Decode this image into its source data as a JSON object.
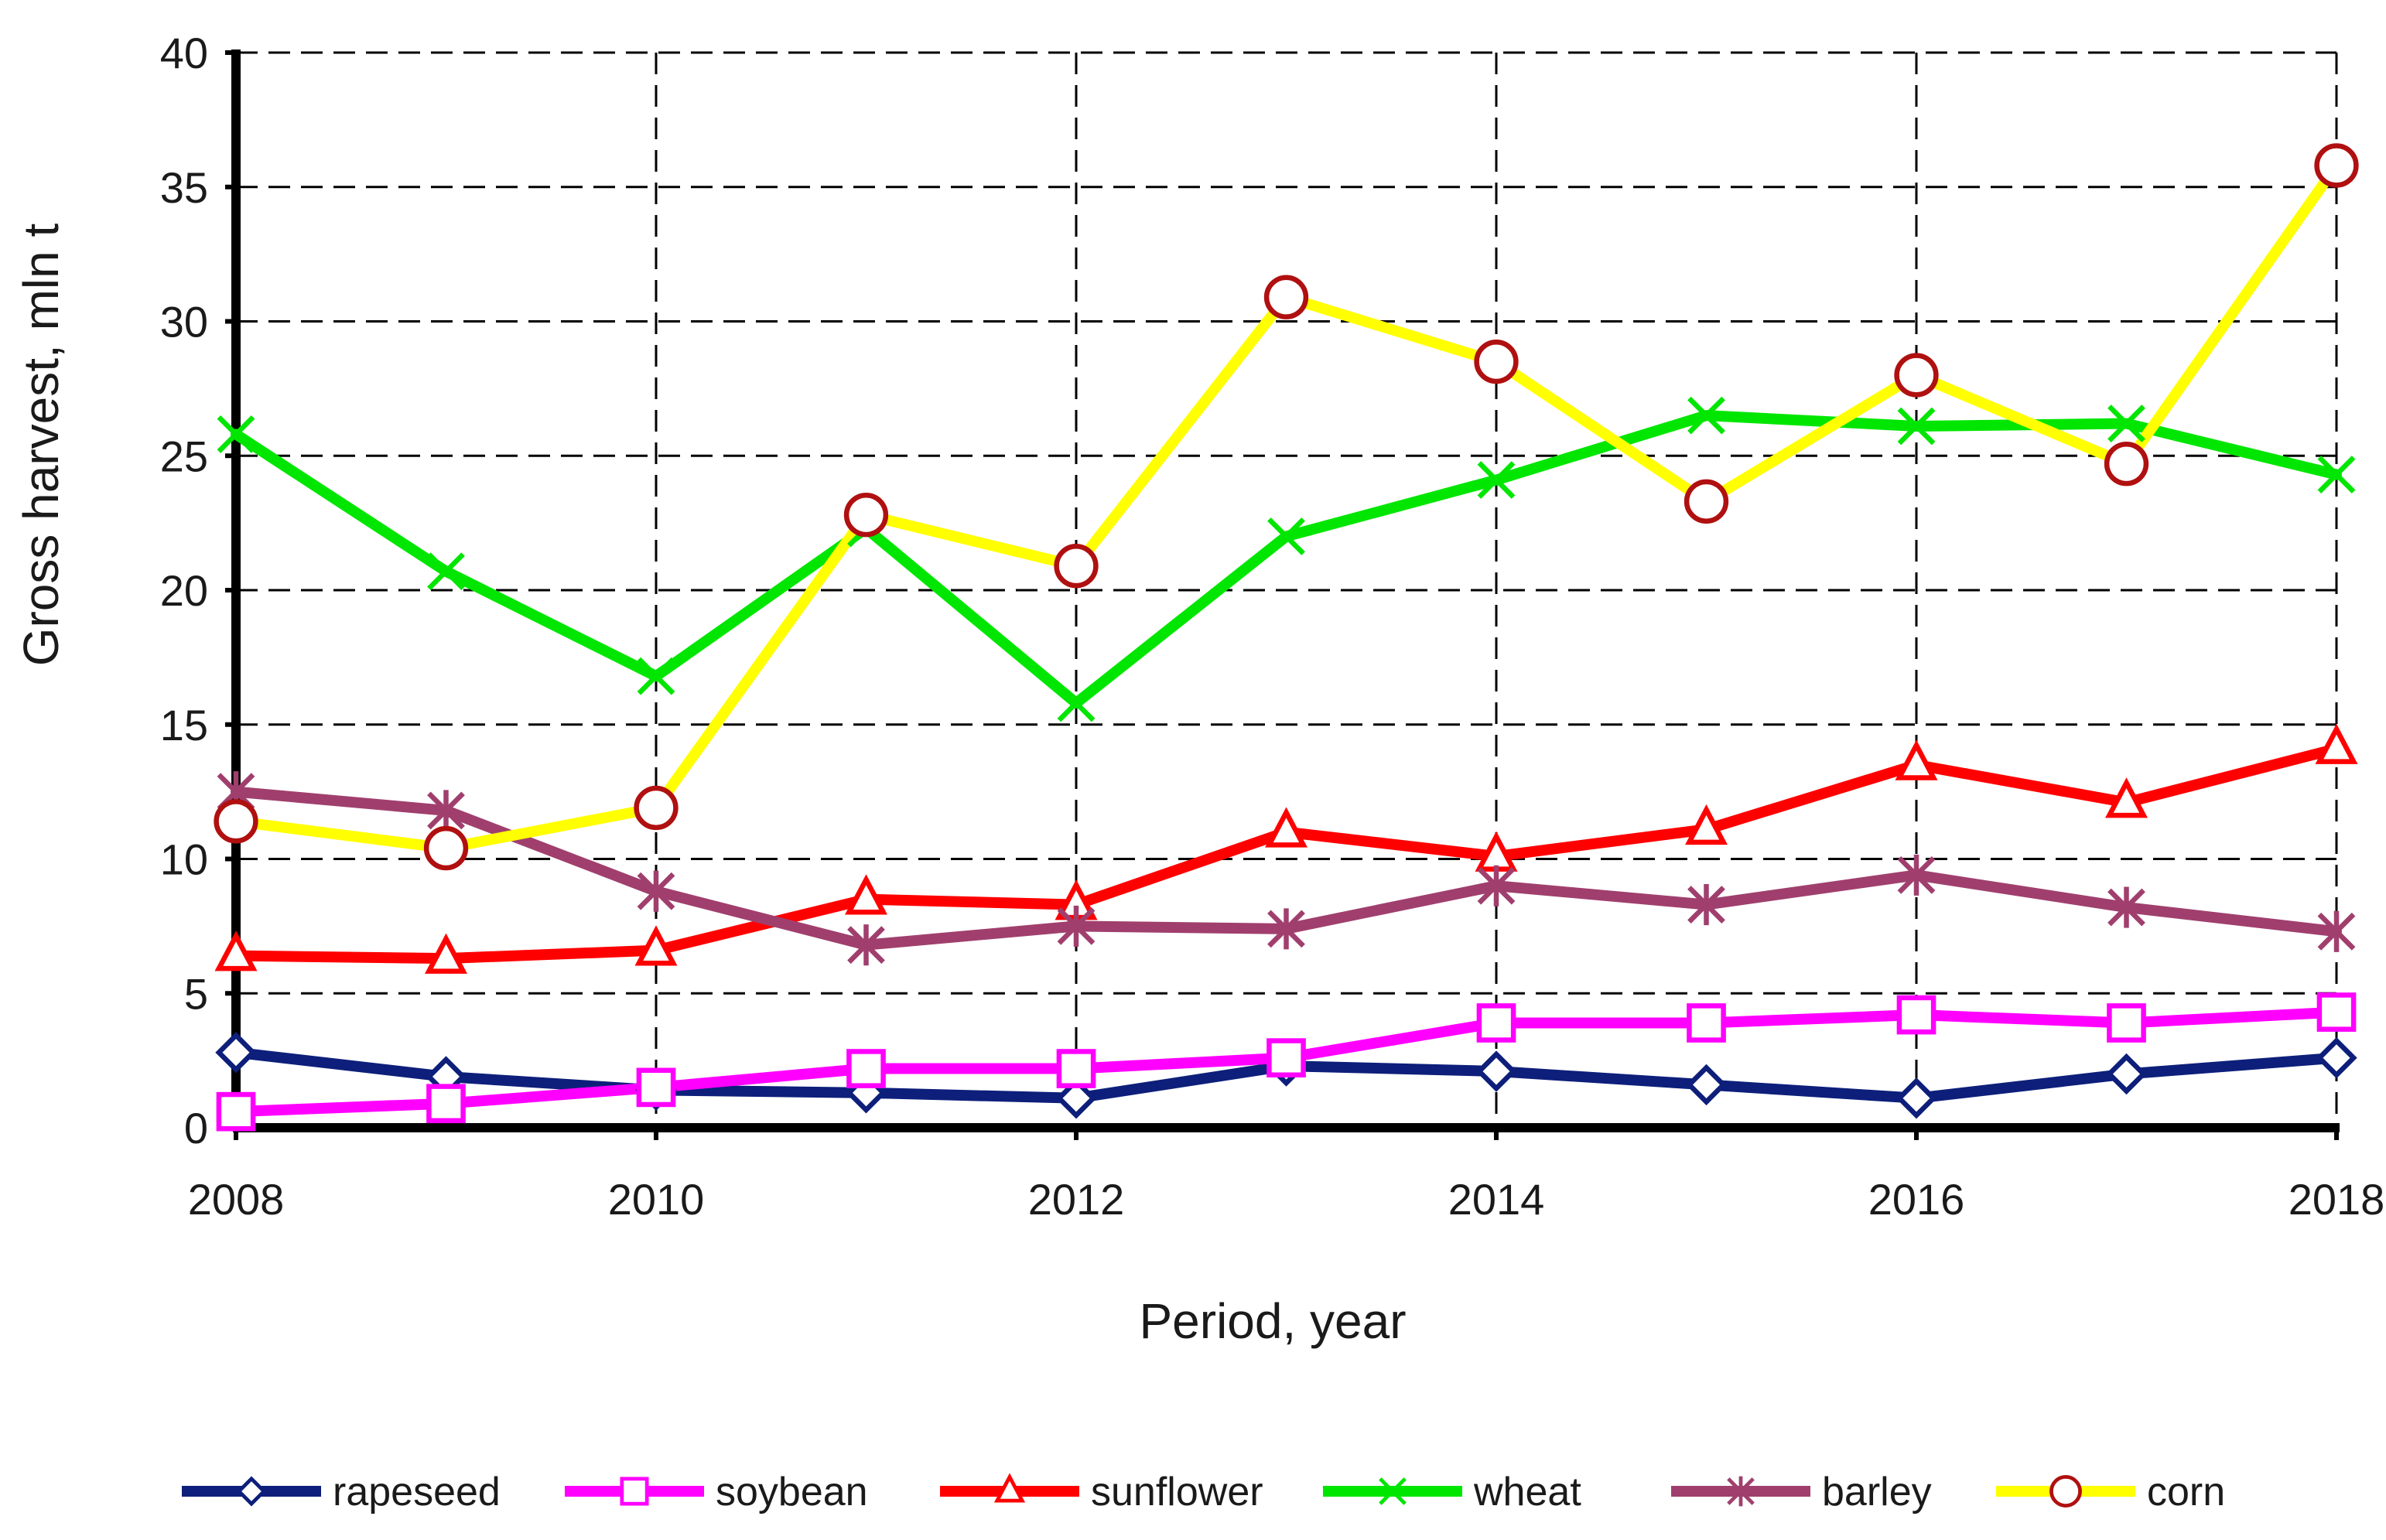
{
  "chart_data": {
    "type": "line",
    "title": "",
    "xlabel": "Period, year",
    "ylabel": "Gross harvest, mln t",
    "xlim": [
      2008,
      2018
    ],
    "ylim": [
      0,
      40
    ],
    "x_ticks": [
      "2008",
      "2010",
      "2012",
      "2014",
      "2016",
      "2018"
    ],
    "y_ticks": [
      "0",
      "5",
      "10",
      "15",
      "20",
      "25",
      "30",
      "35",
      "40"
    ],
    "grid": true,
    "legend_position": "bottom",
    "x": [
      2008,
      2009,
      2010,
      2011,
      2012,
      2013,
      2014,
      2015,
      2016,
      2017,
      2018
    ],
    "series": [
      {
        "name": "rapeseed",
        "color": "#0d1f7a",
        "marker": "diamond-icon",
        "values": [
          2.8,
          1.9,
          1.4,
          1.3,
          1.1,
          2.3,
          2.1,
          1.6,
          1.1,
          2.0,
          2.6
        ]
      },
      {
        "name": "soybean",
        "color": "#ff00ff",
        "marker": "square-icon",
        "values": [
          0.6,
          0.9,
          1.5,
          2.2,
          2.2,
          2.6,
          3.9,
          3.9,
          4.2,
          3.9,
          4.3
        ]
      },
      {
        "name": "sunflower",
        "color": "#ff0000",
        "marker": "triangle-icon",
        "values": [
          6.4,
          6.3,
          6.6,
          8.5,
          8.3,
          11.0,
          10.1,
          11.1,
          13.5,
          12.1,
          14.1
        ]
      },
      {
        "name": "wheat",
        "color": "#00e600",
        "marker": "x-icon",
        "values": [
          25.8,
          20.7,
          16.8,
          22.3,
          15.8,
          22.0,
          24.1,
          26.5,
          26.1,
          26.2,
          24.3
        ]
      },
      {
        "name": "barley",
        "color": "#a03f6e",
        "marker": "asterisk-icon",
        "values": [
          12.5,
          11.8,
          8.8,
          6.8,
          7.5,
          7.4,
          9.0,
          8.3,
          9.4,
          8.2,
          7.3
        ]
      },
      {
        "name": "corn",
        "color": "#ffff00",
        "marker_color": "#b01010",
        "marker": "circle-icon",
        "values": [
          11.4,
          10.4,
          11.9,
          22.8,
          20.9,
          30.9,
          28.5,
          23.3,
          28.0,
          24.7,
          35.8
        ]
      }
    ]
  }
}
